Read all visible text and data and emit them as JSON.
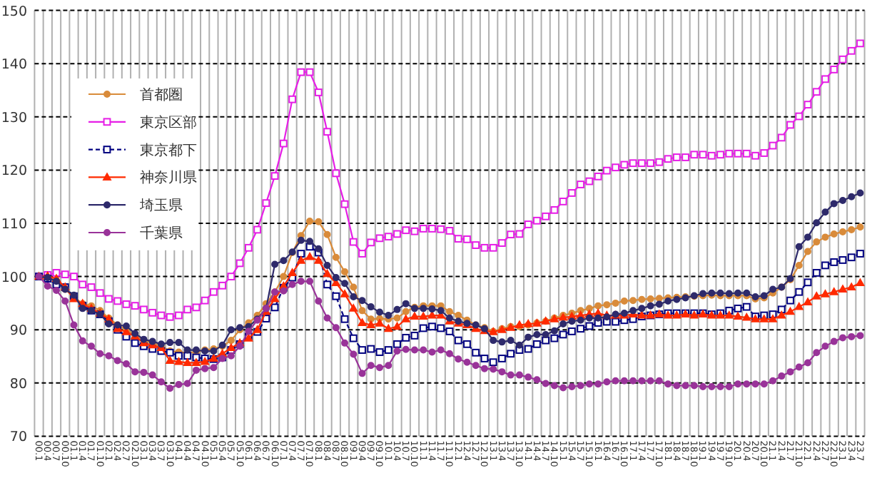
{
  "chart_data": {
    "type": "line",
    "categories": [
      "00.1",
      "00.4",
      "00.7",
      "00.10",
      "01.1",
      "01.4",
      "01.7",
      "01.10",
      "02.1",
      "02.4",
      "02.7",
      "02.10",
      "03.1",
      "03.4",
      "03.7",
      "03.10",
      "04.1",
      "04.4",
      "04.7",
      "04.10",
      "05.1",
      "05.4",
      "05.7",
      "05.10",
      "06.1",
      "06.4",
      "06.7",
      "06.10",
      "07.1",
      "07.4",
      "07.7",
      "07.10",
      "08.1",
      "08.4",
      "08.7",
      "08.10",
      "09.1",
      "09.4",
      "09.7",
      "09.10",
      "10.1",
      "10.4",
      "10.7",
      "10.10",
      "11.1",
      "11.4",
      "11.7",
      "11.10",
      "12.1",
      "12.4",
      "12.7",
      "12.10",
      "13.1",
      "13.4",
      "13.7",
      "13.10",
      "14.1",
      "14.4",
      "14.7",
      "14.10",
      "15.1",
      "15.4",
      "15.7",
      "15.10",
      "16.1",
      "16.4",
      "16.7",
      "16.10",
      "17.1",
      "17.4",
      "17.7",
      "17.10",
      "18.1",
      "18.4",
      "18.7",
      "18.10",
      "19.1",
      "19.4",
      "19.7",
      "19.10",
      "20.1",
      "20.4",
      "20.7",
      "20.10",
      "21.1",
      "21.4",
      "21.7",
      "21.10",
      "22.1",
      "22.4",
      "22.7",
      "22.10",
      "23.1",
      "23.4",
      "23.7"
    ],
    "series": [
      {
        "name": "首都圏",
        "color": "#d98b3a",
        "marker": "circle",
        "line_style": "solid",
        "values": [
          100,
          99.7,
          99.3,
          97.6,
          96.1,
          94.9,
          94.5,
          93.6,
          92.2,
          90.9,
          90,
          89.1,
          88,
          87.5,
          86.9,
          86,
          85.8,
          85.7,
          85.8,
          86.2,
          86.4,
          86.9,
          88,
          90,
          91.3,
          92.7,
          94.9,
          97.1,
          100,
          104.5,
          107.7,
          110.4,
          110.3,
          107.9,
          103.6,
          100.9,
          98,
          93.6,
          92,
          92.1,
          92,
          92.2,
          93.4,
          94.2,
          94.5,
          94.5,
          94.5,
          93.4,
          92.7,
          91.8,
          90.9,
          90.4,
          89.7,
          90.2,
          90.6,
          90.6,
          90.9,
          91.3,
          91.6,
          92.2,
          92.7,
          93.1,
          93.6,
          94,
          94.5,
          94.7,
          95,
          95.4,
          95.5,
          95.7,
          95.8,
          95.9,
          96,
          96.1,
          96.2,
          96.3,
          96.4,
          96.5,
          96.4,
          96.4,
          96.4,
          96.4,
          95.8,
          96,
          96.9,
          98,
          99.4,
          102.1,
          104.7,
          106.5,
          107.4,
          108,
          108.4,
          108.8,
          109.3
        ]
      },
      {
        "name": "東京区部",
        "color": "#e61ee6",
        "marker": "square",
        "line_style": "solid",
        "values": [
          100,
          100.3,
          100.7,
          100.4,
          100,
          98.5,
          98,
          96.9,
          95.8,
          95.4,
          94.8,
          94.5,
          93.8,
          93.2,
          92.7,
          92.4,
          92.7,
          93.8,
          94.2,
          95.5,
          97.1,
          98.3,
          100,
          102.5,
          105.4,
          108.8,
          113.8,
          118.9,
          125,
          133.3,
          138.4,
          138.4,
          134.6,
          127.2,
          119.4,
          113.6,
          106.5,
          104.3,
          106.4,
          107.2,
          107.5,
          108,
          108.7,
          108.5,
          109,
          109,
          108.9,
          108.6,
          107.1,
          107,
          105.9,
          105.4,
          105.4,
          106.3,
          107.9,
          108,
          109.8,
          110.5,
          111.3,
          112.5,
          114.1,
          115.7,
          117.3,
          117.9,
          118.8,
          119.9,
          120.5,
          121,
          121.3,
          121.3,
          121.3,
          121.5,
          122.1,
          122.4,
          122.4,
          122.9,
          122.9,
          122.7,
          122.9,
          123.1,
          123.1,
          123.1,
          122.7,
          123.2,
          124.6,
          126.1,
          128.5,
          130.1,
          132.3,
          134.7,
          137.1,
          138.9,
          140.8,
          142.4,
          143.8
        ]
      },
      {
        "name": "東京都下",
        "color": "#000080",
        "marker": "square",
        "line_style": "dashed",
        "values": [
          100,
          99.6,
          98.5,
          98,
          96.3,
          94.5,
          93.6,
          92.9,
          91.6,
          90,
          88.7,
          87.5,
          86.9,
          86.4,
          86,
          85.7,
          85.1,
          85.1,
          84.8,
          84.6,
          84.5,
          84.8,
          86.2,
          87.3,
          88.7,
          89.6,
          92.1,
          94.2,
          97.9,
          99.8,
          104.3,
          105.6,
          104.5,
          98.5,
          96.3,
          92,
          88.4,
          86.2,
          86.4,
          85.8,
          86.2,
          87.3,
          88.5,
          88.9,
          90.3,
          90.6,
          90.3,
          89.7,
          88,
          87.3,
          85.7,
          84.6,
          83.9,
          84.6,
          85.5,
          86.2,
          86.4,
          87.3,
          88,
          88.4,
          89.1,
          89.7,
          90.2,
          90.7,
          91.3,
          91.5,
          91.5,
          91.8,
          92,
          92.5,
          92.7,
          92.9,
          93.1,
          93.1,
          93.1,
          93.1,
          93.1,
          92.9,
          93.1,
          93.6,
          94,
          94.3,
          92.5,
          92.7,
          92.9,
          93.8,
          95.5,
          97.1,
          98.9,
          100.7,
          102.1,
          102.7,
          103.1,
          103.6,
          104.3
        ]
      },
      {
        "name": "神奈川県",
        "color": "#ff2a00",
        "marker": "triangle",
        "line_style": "solid",
        "values": [
          100,
          100.1,
          99.6,
          98,
          95.8,
          94.9,
          94,
          93.1,
          92,
          90.2,
          89.6,
          88.8,
          87.5,
          87.1,
          86.6,
          84.2,
          84,
          83.8,
          83.8,
          84,
          84.6,
          85.5,
          86.6,
          87.5,
          88.4,
          90,
          93.4,
          95.8,
          98.2,
          100.7,
          103,
          103.7,
          103,
          100.5,
          98.8,
          96.7,
          94,
          91.3,
          90.9,
          91.2,
          90.2,
          90.6,
          92,
          92.5,
          92.5,
          92.7,
          92.7,
          91.6,
          91.2,
          90.9,
          90.2,
          89.8,
          89.6,
          90,
          90.4,
          90.9,
          91.1,
          91.2,
          91.6,
          92,
          92.3,
          92.5,
          92.7,
          92.9,
          93.1,
          92.7,
          92.7,
          92.7,
          92.9,
          92.7,
          92.7,
          92.9,
          92.7,
          92.7,
          92.9,
          92.7,
          92.9,
          92.7,
          92.7,
          92.7,
          92.5,
          92.3,
          92,
          92,
          92,
          92.7,
          93.4,
          94.3,
          95.2,
          96.3,
          96.7,
          97.1,
          97.6,
          98,
          98.8
        ]
      },
      {
        "name": "埼玉県",
        "color": "#2e2a6b",
        "marker": "circle",
        "line_style": "solid",
        "values": [
          100,
          99.8,
          99.1,
          97.6,
          96.5,
          94,
          93.6,
          92.9,
          91.1,
          90.9,
          90.7,
          89.3,
          88.2,
          87.8,
          87.3,
          87.6,
          87.6,
          86.2,
          86.2,
          86,
          86,
          87.1,
          90,
          90.4,
          90.6,
          92,
          94,
          102.3,
          103,
          104.6,
          106.8,
          106.6,
          105.2,
          102.1,
          99.8,
          98.7,
          96.2,
          95.5,
          94.3,
          93.3,
          92.7,
          93.8,
          94.9,
          94,
          94,
          93.9,
          93.6,
          92.2,
          91.6,
          91.2,
          90.9,
          90.2,
          88,
          87.7,
          88,
          87.1,
          88.6,
          89.1,
          89.1,
          89.8,
          91.1,
          91.6,
          91.8,
          92.2,
          92.2,
          92.4,
          92.9,
          93.1,
          93.6,
          94,
          94.5,
          94.8,
          95.4,
          95.7,
          96,
          96.4,
          96.8,
          96.9,
          96.9,
          96.8,
          96.9,
          96.9,
          96.2,
          96.4,
          97.6,
          98,
          99.6,
          105.6,
          107.4,
          110.1,
          112.1,
          113.7,
          114.3,
          115,
          115.7
        ]
      },
      {
        "name": "千葉県",
        "color": "#993399",
        "marker": "circle",
        "line_style": "solid",
        "values": [
          100,
          98.2,
          97.4,
          95.4,
          90.9,
          87.9,
          86.9,
          85.5,
          85.1,
          84.2,
          83.6,
          82.1,
          82,
          81.5,
          80.2,
          79,
          79.7,
          79.9,
          82.4,
          82.7,
          82.9,
          84.6,
          85.1,
          86.9,
          89.7,
          91.8,
          94,
          97.1,
          97.3,
          98.5,
          99.1,
          99.1,
          95.4,
          92.2,
          90.4,
          87.5,
          85.4,
          81.8,
          83.3,
          82.9,
          83.3,
          86,
          86.3,
          86.2,
          86.2,
          85.8,
          86.2,
          85.5,
          84.5,
          83.9,
          83.3,
          82.7,
          82.6,
          82.1,
          81.5,
          81.5,
          81.1,
          80.6,
          79.9,
          79.5,
          79.1,
          79.3,
          79.5,
          79.8,
          79.8,
          80.2,
          80.4,
          80.4,
          80.4,
          80.4,
          80.4,
          80.4,
          79.8,
          79.5,
          79.5,
          79.5,
          79.3,
          79.3,
          79.3,
          79.3,
          79.8,
          79.8,
          79.8,
          79.8,
          80.4,
          81.3,
          82.1,
          83,
          83.8,
          85.7,
          86.9,
          87.8,
          88.5,
          88.7,
          88.9
        ]
      }
    ],
    "ylim": [
      70,
      150
    ],
    "yticks": [
      70,
      80,
      90,
      100,
      110,
      120,
      130,
      140,
      150
    ],
    "grid": true,
    "legend": "top left"
  }
}
